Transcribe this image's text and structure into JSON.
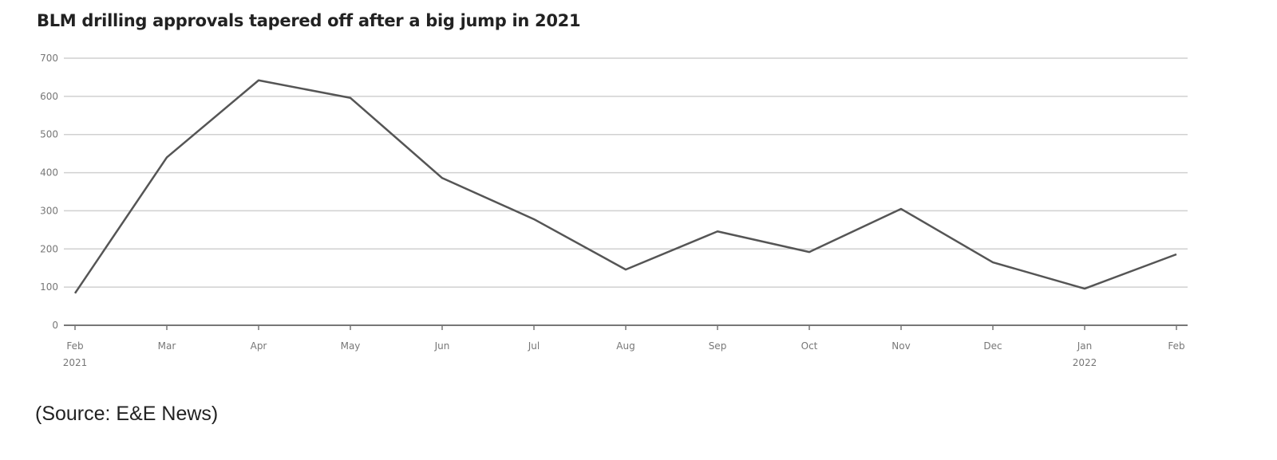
{
  "chart_data": {
    "type": "line",
    "title": "BLM drilling approvals tapered off after a big jump in 2021",
    "xlabel": "",
    "ylabel": "",
    "categories": [
      "Feb 2021",
      "Mar",
      "Apr",
      "May",
      "Jun",
      "Jul",
      "Aug",
      "Sep",
      "Oct",
      "Nov",
      "Dec",
      "Jan 2022",
      "Feb"
    ],
    "x_tick_labels": [
      [
        "Feb",
        "2021"
      ],
      [
        "Mar"
      ],
      [
        "Apr"
      ],
      [
        "May"
      ],
      [
        "Jun"
      ],
      [
        "Jul"
      ],
      [
        "Aug"
      ],
      [
        "Sep"
      ],
      [
        "Oct"
      ],
      [
        "Nov"
      ],
      [
        "Dec"
      ],
      [
        "Jan",
        "2022"
      ],
      [
        "Feb"
      ]
    ],
    "values": [
      84,
      440,
      642,
      596,
      386,
      278,
      146,
      246,
      192,
      305,
      165,
      96,
      186
    ],
    "ylim": [
      0,
      700
    ],
    "yticks": [
      0,
      100,
      200,
      300,
      400,
      500,
      600,
      700
    ],
    "grid": "horizontal",
    "line_color": "#555555"
  },
  "source": "(Source: E&E News)"
}
